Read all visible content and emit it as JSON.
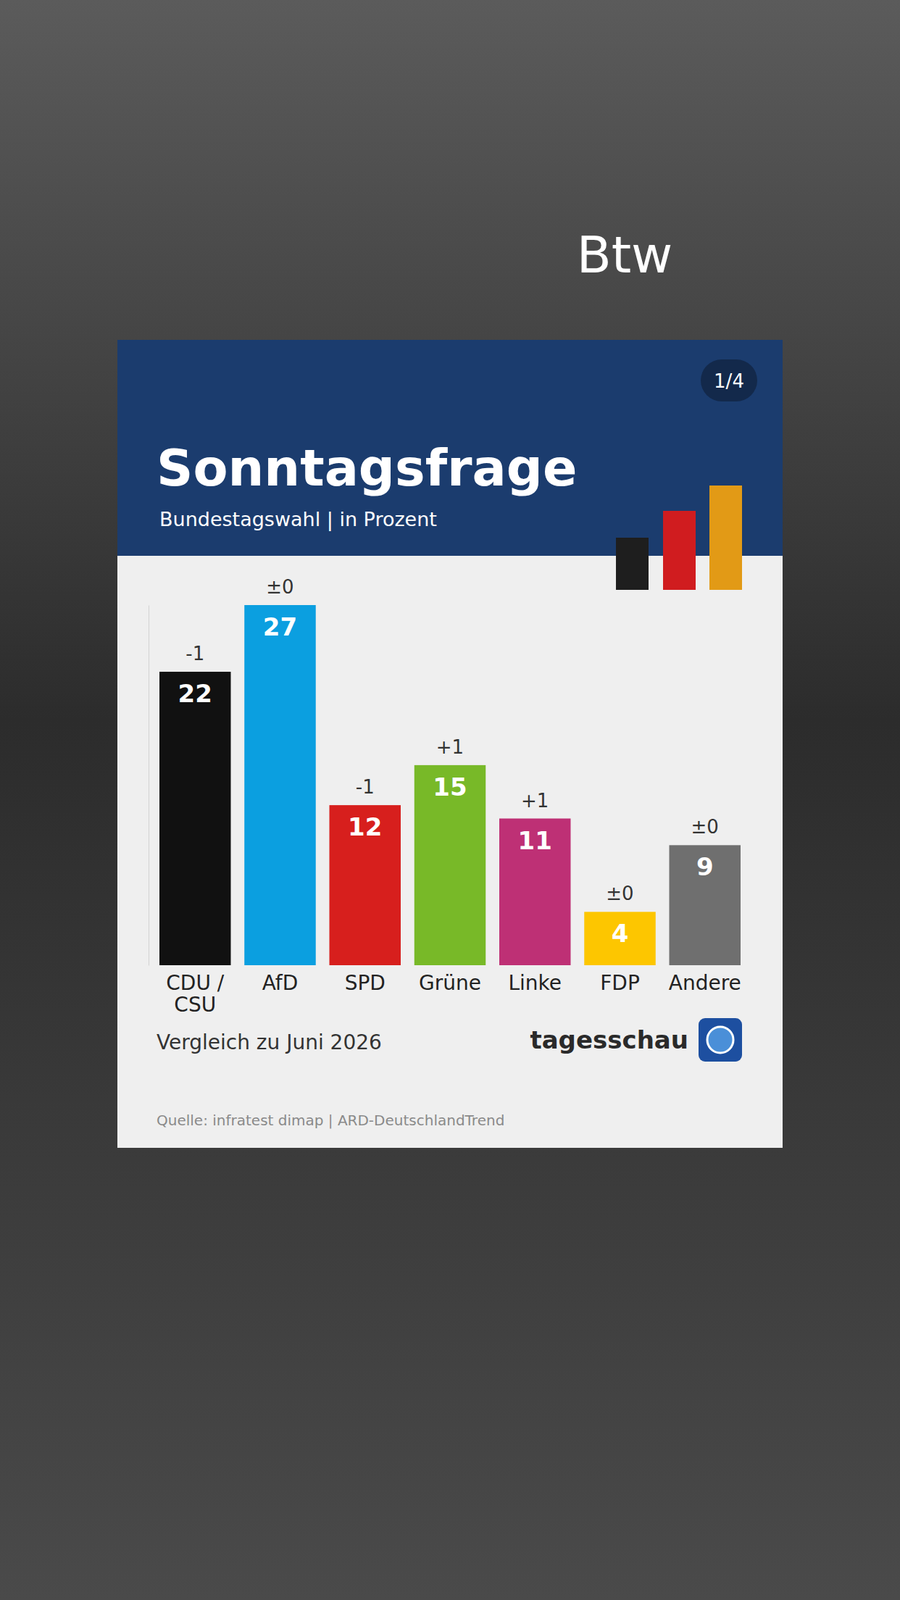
{
  "overlay_text": "Btw",
  "chart_data": {
    "type": "bar",
    "title": "Sonntagsfrage",
    "subtitle": "Bundestagswahl | in Prozent",
    "page_indicator": "1/4",
    "categories": [
      "CDU / CSU",
      "AfD",
      "SPD",
      "Grüne",
      "Linke",
      "FDP",
      "Andere"
    ],
    "values": [
      22,
      27,
      12,
      15,
      11,
      4,
      9
    ],
    "colors": [
      "#111111",
      "#0b9fe0",
      "#d71f1d",
      "#78b928",
      "#be3075",
      "#fdc600",
      "#6f6f6f"
    ],
    "change_labels": [
      "-1",
      "±0",
      "-1",
      "+1",
      "+1",
      "±0",
      "±0"
    ],
    "ylim": [
      0,
      27
    ],
    "yticks": [
      0
    ],
    "tick_labels": "x",
    "data_labels": true,
    "annotation": "Vergleich zu Juni 2026",
    "brand": "tagesschau",
    "source": "Quelle: infratest dimap | ARD-DeutschlandTrend"
  }
}
